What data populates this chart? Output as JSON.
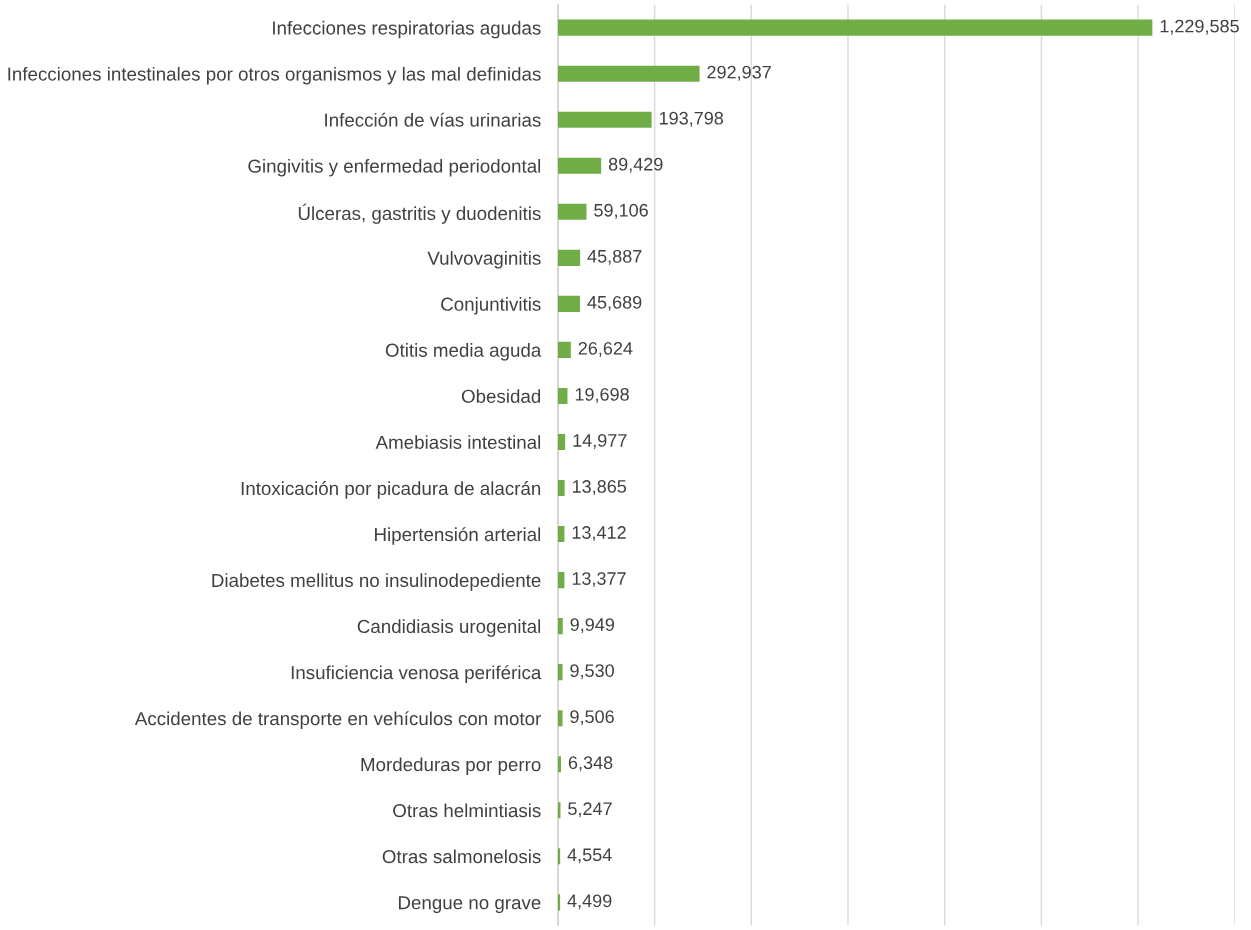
{
  "chart_data": {
    "type": "bar",
    "orientation": "horizontal",
    "categories": [
      "Infecciones respiratorias agudas",
      "Infecciones intestinales por otros organismos y las mal definidas",
      "Infección de vías urinarias",
      "Gingivitis y enfermedad periodontal",
      "Úlceras, gastritis y duodenitis",
      "Vulvovaginitis",
      "Conjuntivitis",
      "Otitis media aguda",
      "Obesidad",
      "Amebiasis intestinal",
      "Intoxicación por picadura de alacrán",
      "Hipertensión arterial",
      "Diabetes mellitus no insulinodepediente",
      "Candidiasis urogenital",
      "Insuficiencia venosa periférica",
      "Accidentes de transporte en vehículos con motor",
      "Mordeduras por perro",
      "Otras helmintiasis",
      "Otras salmonelosis",
      "Dengue no grave"
    ],
    "values": [
      1229585,
      292937,
      193798,
      89429,
      59106,
      45887,
      45689,
      26624,
      19698,
      14977,
      13865,
      13412,
      13377,
      9949,
      9530,
      9506,
      6348,
      5247,
      4554,
      4499
    ],
    "value_labels": [
      "1,229,585",
      "292,937",
      "193,798",
      "89,429",
      "59,106",
      "45,887",
      "45,689",
      "26,624",
      "19,698",
      "14,977",
      "13,865",
      "13,412",
      "13,377",
      "9,949",
      "9,530",
      "9,506",
      "6,348",
      "5,247",
      "4,554",
      "4,499"
    ],
    "color": "#70ad47",
    "xlim": [
      0,
      1400000
    ],
    "xticks": [
      {
        "value": 0,
        "label": null
      },
      {
        "value": 200000,
        "label": null
      },
      {
        "value": 400000,
        "label": null
      },
      {
        "value": 600000,
        "label": null
      },
      {
        "value": 800000,
        "label": null
      },
      {
        "value": 1000000,
        "label": null
      },
      {
        "value": 1200000,
        "label": null
      },
      {
        "value": 1400000,
        "label": null
      }
    ],
    "grid": "x",
    "tick_labels": "y"
  }
}
